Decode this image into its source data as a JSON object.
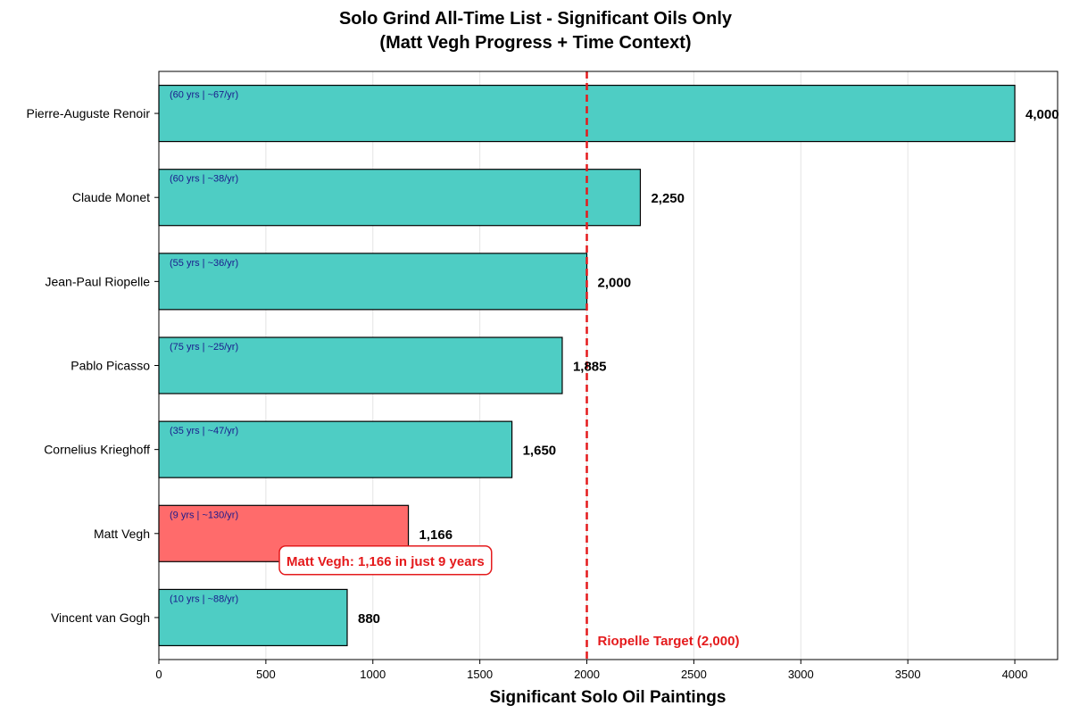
{
  "chart_data": {
    "type": "bar",
    "orientation": "horizontal",
    "title": "Solo Grind All-Time List - Significant Oils Only",
    "subtitle": "(Matt Vegh Progress + Time Context)",
    "xlabel": "Significant Solo Oil Paintings",
    "ylabel": "",
    "xlim": [
      0,
      4200
    ],
    "xticks": [
      0,
      500,
      1000,
      1500,
      2000,
      2500,
      3000,
      3500,
      4000
    ],
    "grid": "vertical",
    "categories": [
      "Pierre-Auguste Renoir",
      "Claude Monet",
      "Jean-Paul Riopelle",
      "Pablo Picasso",
      "Cornelius Krieghoff",
      "Matt Vegh",
      "Vincent van Gogh"
    ],
    "values": [
      4000,
      2250,
      2000,
      1885,
      1650,
      1166,
      880
    ],
    "value_labels": [
      "4,000",
      "2,250",
      "2,000",
      "1,885",
      "1,650",
      "1,166",
      "880"
    ],
    "bar_notes": [
      "(60 yrs | ~67/yr)",
      "(60 yrs | ~38/yr)",
      "(55 yrs | ~36/yr)",
      "(75 yrs | ~25/yr)",
      "(35 yrs | ~47/yr)",
      "(9 yrs | ~130/yr)",
      "(10 yrs | ~88/yr)"
    ],
    "highlight": "Matt Vegh",
    "colors": {
      "default_bar": "#4ecdc4",
      "highlight_bar": "#ff6b6b",
      "reference_line": "#e41a1c",
      "note_text": "#1a1a8c"
    },
    "reference_line": {
      "value": 2000,
      "label": "Riopelle Target (2,000)",
      "style": "dashed"
    },
    "annotation": {
      "text": "Matt Vegh: 1,166 in just 9 years",
      "target": "Matt Vegh"
    }
  }
}
